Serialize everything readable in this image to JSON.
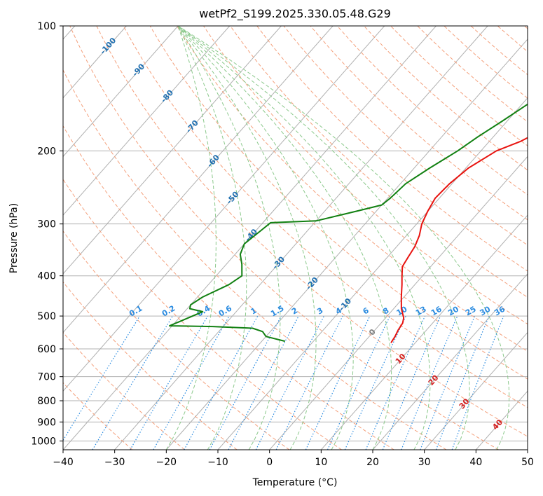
{
  "chart_data": {
    "type": "line",
    "title": "wetPf2_S199.2025.330.05.48.G29",
    "xlabel": "Temperature (°C)",
    "ylabel": "Pressure (hPa)",
    "xlim": [
      -40,
      50
    ],
    "ylim": [
      1050,
      100
    ],
    "yscale": "log",
    "x_ticks": [
      "−40",
      "−30",
      "−20",
      "−10",
      "0",
      "10",
      "20",
      "30",
      "40",
      "50"
    ],
    "y_ticks": [
      "100",
      "200",
      "300",
      "400",
      "500",
      "600",
      "700",
      "800",
      "900",
      "1000"
    ],
    "grid": true,
    "series": [
      {
        "role": "temperature",
        "color": "#e8130f",
        "points": [
          [
            5.3,
            580
          ],
          [
            5.0,
            560
          ],
          [
            4.5,
            540
          ],
          [
            4.2,
            520
          ],
          [
            3.5,
            505
          ],
          [
            1.5,
            480
          ],
          [
            -0.5,
            450
          ],
          [
            -2.5,
            420
          ],
          [
            -4.0,
            400
          ],
          [
            -5.5,
            380
          ],
          [
            -6.0,
            360
          ],
          [
            -6.5,
            340
          ],
          [
            -7.5,
            320
          ],
          [
            -9.0,
            300
          ],
          [
            -10.0,
            280
          ],
          [
            -10.8,
            260
          ],
          [
            -10.5,
            240
          ],
          [
            -9.5,
            220
          ],
          [
            -7.0,
            200
          ],
          [
            -4.0,
            190
          ],
          [
            -2.0,
            180
          ],
          [
            -1.0,
            170
          ],
          [
            -1.0,
            160
          ],
          [
            -1.5,
            150
          ],
          [
            -0.5,
            140
          ],
          [
            1.0,
            130
          ],
          [
            3.0,
            122
          ],
          [
            6.0,
            115
          ],
          [
            8.0,
            108
          ],
          [
            10.0,
            100
          ]
        ]
      },
      {
        "role": "dewpoint",
        "color": "#118011",
        "points": [
          [
            -15.5,
            575
          ],
          [
            -20.0,
            560
          ],
          [
            -21.5,
            545
          ],
          [
            -24.0,
            535
          ],
          [
            -32.0,
            530
          ],
          [
            -40.5,
            528
          ],
          [
            -36.5,
            488
          ],
          [
            -39.5,
            480
          ],
          [
            -40.0,
            470
          ],
          [
            -39.0,
            450
          ],
          [
            -36.0,
            420
          ],
          [
            -35.0,
            400
          ],
          [
            -37.0,
            375
          ],
          [
            -39.0,
            355
          ],
          [
            -40.0,
            335
          ],
          [
            -39.0,
            310
          ],
          [
            -38.5,
            298
          ],
          [
            -30.0,
            295
          ],
          [
            -24.0,
            280
          ],
          [
            -20.0,
            270
          ],
          [
            -19.5,
            260
          ],
          [
            -19.0,
            240
          ],
          [
            -17.0,
            220
          ],
          [
            -14.5,
            200
          ],
          [
            -13.0,
            185
          ],
          [
            -11.0,
            170
          ],
          [
            -9.0,
            155
          ],
          [
            -6.5,
            140
          ],
          [
            -4.0,
            125
          ],
          [
            -1.0,
            112
          ],
          [
            2.0,
            100
          ]
        ]
      }
    ],
    "isotherm_labels": [
      "-100",
      "-90",
      "-80",
      "-70",
      "-60",
      "-50",
      "-40",
      "-30",
      "-20",
      "-10",
      "0",
      "10",
      "20",
      "30",
      "40"
    ],
    "mixing_ratio_labels": [
      "0.1",
      "0.2",
      "0.4",
      "0.6",
      "1",
      "1.5",
      "2",
      "3",
      "4",
      "6",
      "8",
      "10",
      "13",
      "16",
      "20",
      "25",
      "30",
      "36"
    ],
    "colors": {
      "isotherm_neg": "#1f6fb0",
      "isotherm_zero": "#808080",
      "isotherm_pos": "#d42020",
      "mixing_ratio": "#2a8be0",
      "dry_adiabat": "#f4a07c",
      "moist_adiabat": "#8cc98c",
      "grid": "#b0b0b0"
    }
  }
}
